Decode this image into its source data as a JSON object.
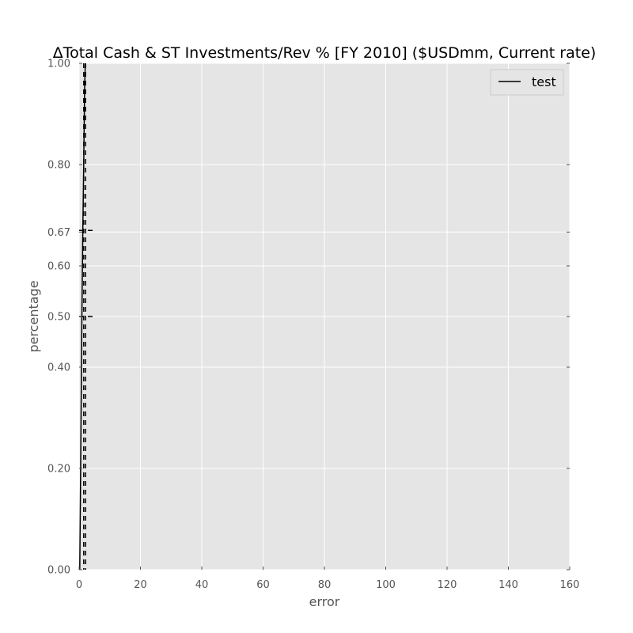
{
  "chart_data": {
    "type": "line",
    "title": "ΔTotal Cash & ST Investments/Rev % [FY 2010] ($USDmm, Current rate)",
    "xlabel": "error",
    "ylabel": "percentage",
    "xlim": [
      0,
      160
    ],
    "ylim": [
      0,
      1
    ],
    "x_ticks": [
      0,
      20,
      40,
      60,
      80,
      100,
      120,
      140,
      160
    ],
    "x_tick_labels": [
      "0",
      "20",
      "40",
      "60",
      "80",
      "100",
      "120",
      "140",
      "160"
    ],
    "y_ticks": [
      0.0,
      0.2,
      0.4,
      0.5,
      0.6,
      0.6667,
      0.8,
      1.0
    ],
    "y_tick_labels": [
      "0.00",
      "0.20",
      "0.40",
      "0.50",
      "0.60",
      "0.67",
      "0.80",
      "1.00"
    ],
    "grid": true,
    "legend": {
      "placement": "top-right",
      "entries": [
        "test"
      ]
    },
    "series": [
      {
        "name": "test",
        "style": "solid",
        "color": "#000000",
        "x": [
          0.2,
          0.5,
          0.9,
          1.2,
          1.5,
          1.8,
          2.0
        ],
        "y": [
          0.0,
          0.2,
          0.5,
          0.67,
          0.8,
          0.95,
          1.0
        ]
      }
    ],
    "reference_lines": {
      "style": "dashed",
      "color": "#000000",
      "vertical_x": [
        1.5,
        2.1
      ],
      "horizontal_segments": [
        {
          "y": 0.5,
          "x": [
            0.0,
            5.0
          ]
        },
        {
          "y": 0.67,
          "x": [
            0.0,
            5.0
          ]
        }
      ]
    }
  }
}
